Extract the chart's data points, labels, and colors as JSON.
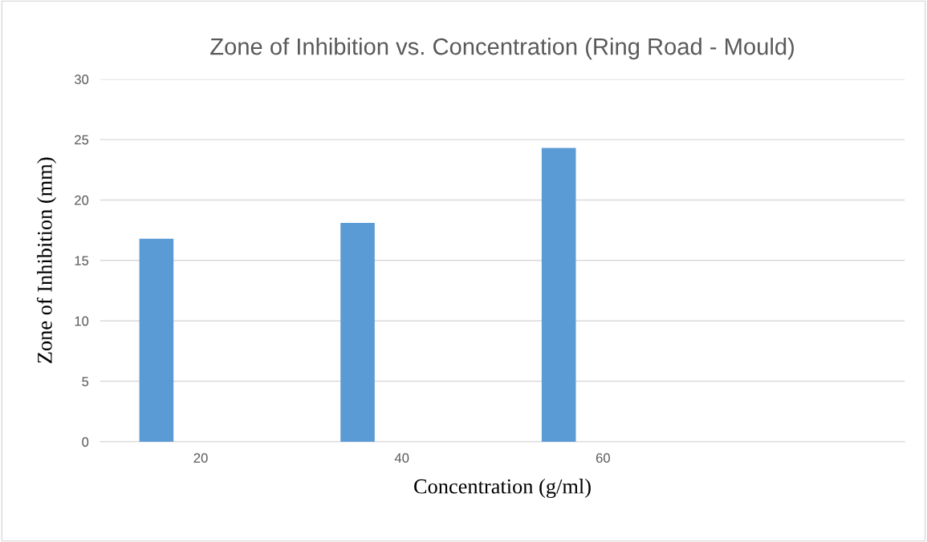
{
  "chart_data": {
    "type": "bar",
    "title": "Zone of Inhibition vs. Concentration (Ring Road - Mould)",
    "xlabel": "Concentration (g/ml)",
    "ylabel": "Zone of Inhibition (mm)",
    "categories": [
      "20",
      "40",
      "60",
      null
    ],
    "values": [
      16.8,
      18.1,
      24.3,
      null
    ],
    "color": "#5b9bd5",
    "ylim": [
      0,
      30
    ],
    "yticks": [
      0,
      5,
      10,
      15,
      20,
      25,
      30
    ],
    "grid": "y",
    "legend": false
  }
}
